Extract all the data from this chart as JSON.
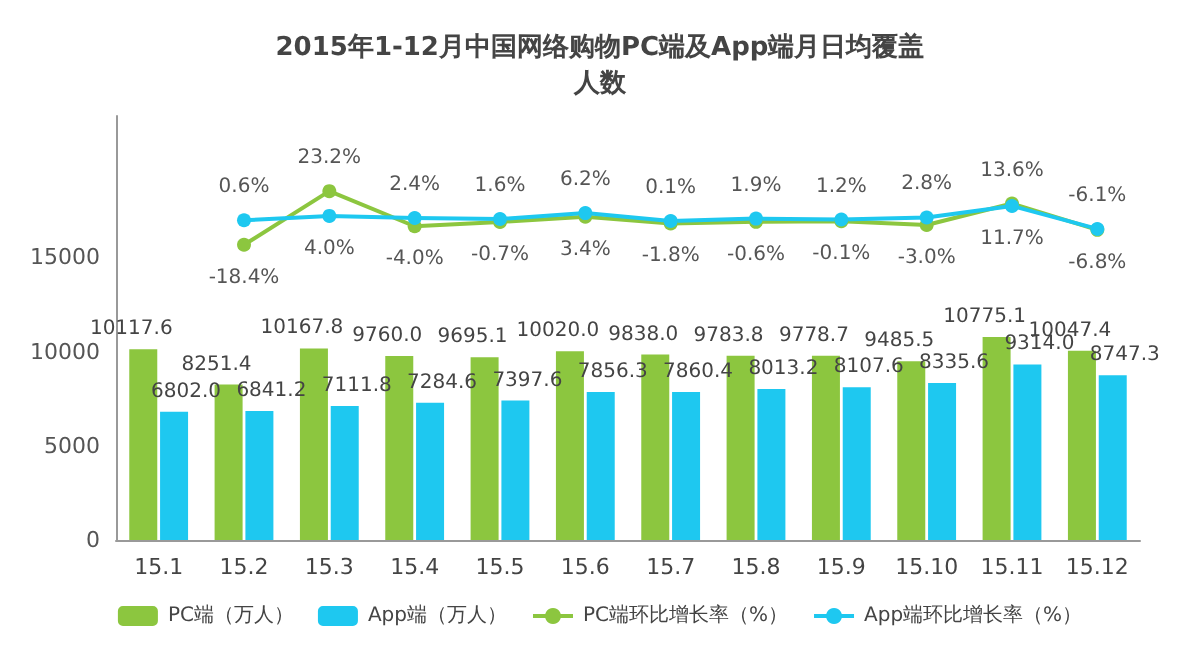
{
  "chart_data": {
    "type": "bar",
    "title": "2015年1-12月中国网络购物PC端及App端月日均覆盖人数",
    "categories": [
      "15.1",
      "15.2",
      "15.3",
      "15.4",
      "15.5",
      "15.6",
      "15.7",
      "15.8",
      "15.9",
      "15.10",
      "15.11",
      "15.12"
    ],
    "series": [
      {
        "name": "PC端（万人）",
        "color": "#8cc63f",
        "values": [
          10117.6,
          8251.4,
          10167.8,
          9760,
          9695.1,
          10020,
          9838,
          9783.8,
          9778.7,
          9485.5,
          10775.1,
          10047.4
        ],
        "value_labels": [
          "10117.6",
          "8251.4",
          "10167.8",
          "9760.0",
          "9695.1",
          "10020.0",
          "9838.0",
          "9783.8",
          "9778.7",
          "9485.5",
          "10775.1",
          "10047.4"
        ]
      },
      {
        "name": "App端（万人）",
        "color": "#1ec8f0",
        "values": [
          6802,
          6841.2,
          7111.8,
          7284.6,
          7397.6,
          7856.3,
          7860.4,
          8013.2,
          8107.6,
          8335.6,
          9314,
          8747.3
        ],
        "value_labels": [
          "6802.0",
          "6841.2",
          "7111.8",
          "7284.6",
          "7397.6",
          "7856.3",
          "7860.4",
          "8013.2",
          "8107.6",
          "8335.6",
          "9314.0",
          "8747.3"
        ]
      },
      {
        "name": "PC端环比增长率（%）",
        "type": "line",
        "axis": "y2",
        "color": "#8cc63f",
        "values": [
          null,
          -18.4,
          23.2,
          -4,
          -0.7,
          3.4,
          -1.8,
          -0.6,
          -0.1,
          -3,
          13.6,
          -6.8
        ],
        "value_labels": [
          null,
          "-18.4%",
          "23.2%",
          "-4.0%",
          "-0.7%",
          "3.4%",
          "-1.8%",
          "-0.6%",
          "-0.1%",
          "-3.0%",
          "13.6%",
          "-6.8%"
        ]
      },
      {
        "name": "App端环比增长率（%）",
        "type": "line",
        "axis": "y2",
        "color": "#1ec8f0",
        "values": [
          null,
          0.6,
          4,
          2.4,
          1.6,
          6.2,
          0.1,
          1.9,
          1.2,
          2.8,
          11.7,
          -6.1
        ],
        "value_labels": [
          null,
          "0.6%",
          "4.0%",
          "2.4%",
          "1.6%",
          "6.2%",
          "0.1%",
          "1.9%",
          "1.2%",
          "2.8%",
          "11.7%",
          "-6.1%"
        ]
      }
    ],
    "ylim": [
      0,
      22500
    ],
    "yticks": [
      0,
      5000,
      10000,
      15000
    ],
    "tick_labels": [
      "x",
      "y"
    ],
    "legend": "bottom",
    "marker": "circle",
    "line_style": "solid",
    "grid": false
  }
}
